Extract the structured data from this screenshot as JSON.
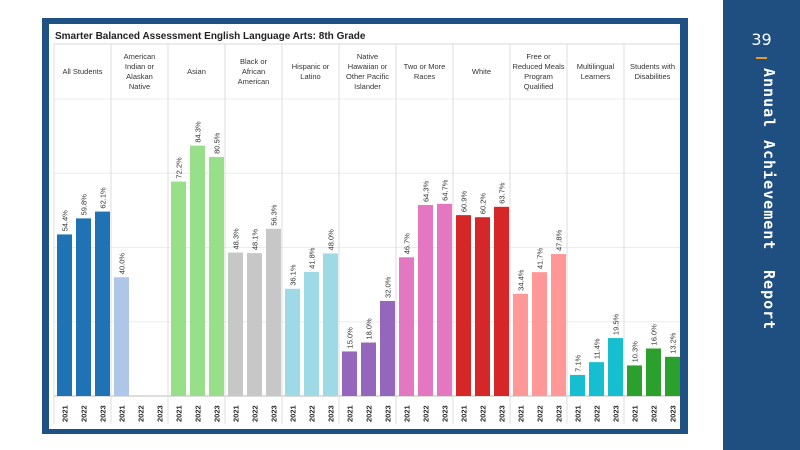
{
  "sidebar": {
    "page_number": "39",
    "words": [
      "Annual",
      "Achievement",
      "Report"
    ]
  },
  "chart_data": {
    "type": "bar",
    "title": "Smarter Balanced Assessment English Language Arts: 8th Grade",
    "ylim": [
      0,
      100
    ],
    "years": [
      "2021",
      "2022",
      "2023"
    ],
    "groups": [
      {
        "name": "All Students",
        "color": "#1f73b4",
        "values": [
          54.4,
          59.8,
          62.1
        ],
        "labels": [
          "54.4%",
          "59.8%",
          "62.1%"
        ]
      },
      {
        "name": "American Indian or Alaskan Native",
        "color": "#aec7e8",
        "values": [
          40.0,
          null,
          null
        ],
        "labels": [
          "40.0%",
          "",
          ""
        ]
      },
      {
        "name": "Asian",
        "color": "#98df8a",
        "values": [
          72.2,
          84.3,
          80.5
        ],
        "labels": [
          "72.2%",
          "84.3%",
          "80.5%"
        ]
      },
      {
        "name": "Black or African American",
        "color": "#c7c7c7",
        "values": [
          48.3,
          48.1,
          56.3
        ],
        "labels": [
          "48.3%",
          "48.1%",
          "56.3%"
        ]
      },
      {
        "name": "Hispanic or Latino",
        "color": "#9edae5",
        "values": [
          36.1,
          41.8,
          48.0
        ],
        "labels": [
          "36.1%",
          "41.8%",
          "48.0%"
        ]
      },
      {
        "name": "Native Hawaiian or Other Pacific Islander",
        "color": "#9467bd",
        "values": [
          15.0,
          18.0,
          32.0
        ],
        "labels": [
          "15.0%",
          "18.0%",
          "32.0%"
        ]
      },
      {
        "name": "Two or More Races",
        "color": "#e377c2",
        "values": [
          46.7,
          64.3,
          64.7
        ],
        "labels": [
          "46.7%",
          "64.3%",
          "64.7%"
        ]
      },
      {
        "name": "White",
        "color": "#d62728",
        "values": [
          60.9,
          60.2,
          63.7
        ],
        "labels": [
          "60.9%",
          "60.2%",
          "63.7%"
        ]
      },
      {
        "name": "Free or Reduced Meals Program Qualified",
        "color": "#ff9896",
        "values": [
          34.4,
          41.7,
          47.8
        ],
        "labels": [
          "34.4%",
          "41.7%",
          "47.8%"
        ]
      },
      {
        "name": "Multilingual Learners",
        "color": "#17becf",
        "values": [
          7.1,
          11.4,
          19.5
        ],
        "labels": [
          "7.1%",
          "11.4%",
          "19.5%"
        ]
      },
      {
        "name": "Students with Disabilities",
        "color": "#2ca02c",
        "values": [
          10.3,
          16.0,
          13.2
        ],
        "labels": [
          "10.3%",
          "16.0%",
          "13.2%"
        ]
      }
    ]
  }
}
